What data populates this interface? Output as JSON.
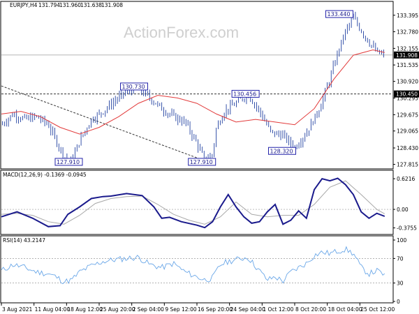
{
  "header": {
    "symbol": "EURJPY,H4",
    "open": "131.794",
    "high": "131.960",
    "low": "131.638",
    "close": "131.908"
  },
  "watermark": "ActionForex.com",
  "colors": {
    "candles": "#1f3fa0",
    "ma": "#e23a3a",
    "macd": "#1a1a8c",
    "signal": "#a8a8a8",
    "rsi": "#6aa7e8",
    "annotation": "#1a1a8c"
  },
  "chart_data": [
    {
      "type": "line",
      "title": "EURJPY,H4 131.794 131.960 131.638 131.908",
      "ylim": [
        127.7,
        133.6
      ],
      "yticks": [
        "133.395",
        "132.780",
        "132.155",
        "131.535",
        "130.920",
        "130.295",
        "129.675",
        "129.065",
        "128.430",
        "127.815"
      ],
      "current_price": "131.908",
      "level_line": "130.450",
      "annotations": [
        "133.440",
        "130.730",
        "130.456",
        "128.320",
        "127.910",
        "127.910"
      ],
      "trendline": {
        "from": [
          0.0,
          130.75
        ],
        "to": [
          53.0,
          127.9
        ]
      },
      "series": [
        {
          "x": [
            0,
            3,
            6,
            9,
            12,
            14,
            16,
            18,
            20,
            23,
            26,
            29,
            32,
            35,
            38,
            41,
            44,
            47,
            50,
            52,
            54,
            55,
            57,
            60,
            63,
            66,
            69,
            72,
            75,
            78,
            81,
            84,
            86,
            88,
            90,
            93,
            96,
            98
          ],
          "values": [
            129.3,
            129.7,
            129.5,
            129.6,
            129.3,
            128.7,
            128.1,
            127.95,
            128.7,
            129.5,
            129.8,
            130.2,
            130.55,
            130.65,
            130.3,
            129.9,
            129.6,
            129.4,
            128.6,
            127.95,
            128.2,
            129.2,
            129.8,
            130.1,
            130.45,
            129.8,
            129.0,
            128.9,
            128.45,
            129.0,
            129.8,
            131.0,
            132.0,
            132.8,
            133.3,
            132.6,
            132.0,
            131.9
          ]
        },
        {
          "name": "",
          "x": [
            0,
            5,
            10,
            15,
            20,
            25,
            30,
            35,
            40,
            45,
            50,
            55,
            60,
            65,
            70,
            75,
            80,
            85,
            90,
            95,
            98
          ],
          "values": [
            129.7,
            129.8,
            129.6,
            129.2,
            128.95,
            129.2,
            129.6,
            130.1,
            130.4,
            130.3,
            130.1,
            129.7,
            129.4,
            129.5,
            129.4,
            129.3,
            129.9,
            131.0,
            131.9,
            132.1,
            132.0
          ]
        }
      ]
    },
    {
      "type": "line",
      "title": "MACD(12,26,9) -0.1369 -0.0945",
      "ylim": [
        -0.48,
        0.68
      ],
      "yticks": [
        "0.6216",
        "0.00",
        "-0.3755"
      ],
      "series": [
        {
          "x": [
            0,
            4,
            8,
            12,
            15,
            17,
            20,
            23,
            26,
            28,
            32,
            36,
            39,
            41,
            43,
            46,
            50,
            52,
            54,
            56,
            58,
            60,
            62,
            64,
            66,
            68,
            70,
            72,
            74,
            76,
            78,
            80,
            82,
            84,
            86,
            88,
            90,
            92,
            94,
            96,
            98
          ],
          "values": [
            -0.15,
            -0.05,
            -0.18,
            -0.35,
            -0.33,
            -0.1,
            0.05,
            0.22,
            0.26,
            0.27,
            0.32,
            0.28,
            0.05,
            -0.18,
            -0.16,
            -0.25,
            -0.32,
            -0.37,
            -0.25,
            0.05,
            0.3,
            0.05,
            -0.15,
            -0.28,
            -0.25,
            -0.05,
            0.1,
            -0.3,
            -0.22,
            -0.03,
            -0.18,
            0.4,
            0.62,
            0.58,
            0.63,
            0.5,
            0.3,
            -0.05,
            -0.18,
            -0.08,
            -0.14
          ]
        },
        {
          "x": [
            0,
            4,
            8,
            12,
            16,
            20,
            24,
            28,
            32,
            36,
            40,
            44,
            48,
            52,
            56,
            60,
            64,
            68,
            72,
            76,
            80,
            84,
            88,
            92,
            96,
            98
          ],
          "values": [
            -0.1,
            -0.08,
            -0.12,
            -0.25,
            -0.3,
            -0.12,
            0.12,
            0.22,
            0.26,
            0.27,
            0.1,
            -0.1,
            -0.22,
            -0.3,
            -0.15,
            0.15,
            -0.1,
            -0.15,
            -0.12,
            -0.12,
            0.1,
            0.45,
            0.58,
            0.3,
            0.0,
            -0.09
          ]
        }
      ]
    },
    {
      "type": "line",
      "title": "RSI(14) 43.2147",
      "ylim": [
        0,
        100
      ],
      "yticks": [
        "100",
        "70",
        "30",
        "0"
      ],
      "xticks": [
        "3 Aug 2021",
        "11 Aug 04:00",
        "18 Aug 12:00",
        "25 Aug 20:00",
        "2 Sep 04:00",
        "9 Sep 12:00",
        "16 Sep 20:00",
        "24 Sep 04:00",
        "1 Oct 12:00",
        "8 Oct 20:00",
        "18 Oct 04:00",
        "25 Oct 12:00"
      ],
      "series": [
        {
          "x": [
            0,
            3,
            6,
            9,
            12,
            14,
            16,
            18,
            20,
            23,
            26,
            29,
            32,
            35,
            38,
            41,
            44,
            47,
            50,
            52,
            54,
            56,
            58,
            60,
            63,
            66,
            68,
            70,
            72,
            74,
            76,
            78,
            80,
            82,
            84,
            86,
            88,
            90,
            92,
            94,
            96,
            98
          ],
          "values": [
            50,
            60,
            55,
            48,
            45,
            40,
            32,
            35,
            48,
            58,
            65,
            68,
            70,
            72,
            60,
            55,
            62,
            48,
            40,
            35,
            38,
            60,
            65,
            68,
            72,
            50,
            35,
            40,
            33,
            48,
            55,
            62,
            75,
            80,
            78,
            82,
            85,
            78,
            55,
            45,
            50,
            43
          ]
        }
      ]
    }
  ]
}
